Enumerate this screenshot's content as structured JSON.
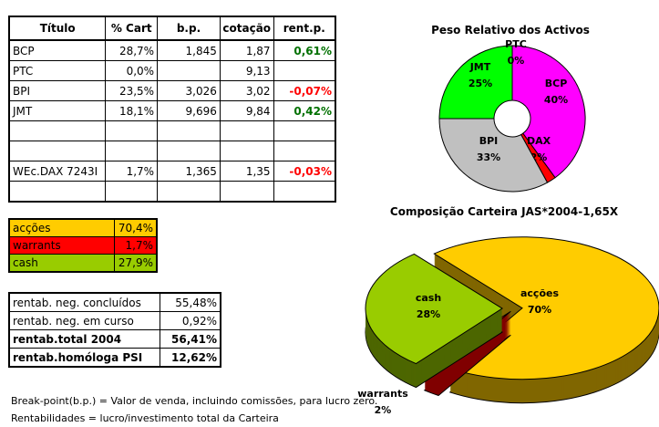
{
  "main_table": {
    "headers": [
      "Título",
      "% Cart",
      "b.p.",
      "cotação",
      "rent.p."
    ],
    "rows": [
      {
        "titulo": "BCP",
        "cart": "28,7%",
        "bp": "1,845",
        "cotacao": "1,87",
        "rent": "0,61%",
        "rent_sign": "pos"
      },
      {
        "titulo": "PTC",
        "cart": "0,0%",
        "bp": "",
        "cotacao": "9,13",
        "rent": "",
        "rent_sign": ""
      },
      {
        "titulo": "BPI",
        "cart": "23,5%",
        "bp": "3,026",
        "cotacao": "3,02",
        "rent": "-0,07%",
        "rent_sign": "neg"
      },
      {
        "titulo": "JMT",
        "cart": "18,1%",
        "bp": "9,696",
        "cotacao": "9,84",
        "rent": "0,42%",
        "rent_sign": "pos"
      },
      {
        "titulo": "",
        "cart": "",
        "bp": "",
        "cotacao": "",
        "rent": "",
        "rent_sign": ""
      },
      {
        "titulo": "",
        "cart": "",
        "bp": "",
        "cotacao": "",
        "rent": "",
        "rent_sign": ""
      },
      {
        "titulo": "WEc.DAX 7243I",
        "cart": "1,7%",
        "bp": "1,365",
        "cotacao": "1,35",
        "rent": "-0,03%",
        "rent_sign": "neg"
      },
      {
        "titulo": "",
        "cart": "",
        "bp": "",
        "cotacao": "",
        "rent": "",
        "rent_sign": ""
      }
    ]
  },
  "assets_table": [
    {
      "label": "acções",
      "value": "70,4%",
      "color": "#ffcc00"
    },
    {
      "label": "warrants",
      "value": "1,7%",
      "color": "#ff0000"
    },
    {
      "label": "cash",
      "value": "27,9%",
      "color": "#99cc00"
    }
  ],
  "rentab_table": [
    {
      "label": "rentab. neg. concluídos",
      "value": "55,48%",
      "bold": false
    },
    {
      "label": "rentab. neg. em curso",
      "value": "0,92%",
      "bold": false
    },
    {
      "label": "rentab.total 2004",
      "value": "56,41%",
      "bold": true
    },
    {
      "label": "rentab.homóloga PSI",
      "value": "12,62%",
      "bold": true
    }
  ],
  "notes": [
    "Break-point(b.p.) = Valor de venda, incluindo comissões, para lucro zero.",
    "Rentabilidades = lucro/investimento total da Carteira"
  ],
  "colors": {
    "positive": "#007000",
    "negative": "#ff0000"
  },
  "chart_data": [
    {
      "type": "pie",
      "style": "doughnut",
      "title": "Peso Relativo dos Activos",
      "slices": [
        {
          "name": "BCP",
          "value": 40,
          "label": "40%",
          "color": "#ff00ff"
        },
        {
          "name": "DAX",
          "value": 2,
          "label": "2%",
          "color": "#ff0000"
        },
        {
          "name": "BPI",
          "value": 33,
          "label": "33%",
          "color": "#c0c0c0"
        },
        {
          "name": "JMT",
          "value": 25,
          "label": "25%",
          "color": "#00ff00"
        },
        {
          "name": "PTC",
          "value": 0,
          "label": "0%",
          "color": "#000080"
        }
      ]
    },
    {
      "type": "pie",
      "style": "3d-exploded",
      "title": "Composição Carteira JAS*2004-1,65X",
      "slices": [
        {
          "name": "acções",
          "value": 70,
          "label": "70%",
          "color": "#ffcc00",
          "side_color": "#806600"
        },
        {
          "name": "warrants",
          "value": 2,
          "label": "2%",
          "color": "#ff0000",
          "side_color": "#800000"
        },
        {
          "name": "cash",
          "value": 28,
          "label": "28%",
          "color": "#99cc00",
          "side_color": "#4d6600"
        }
      ]
    }
  ]
}
